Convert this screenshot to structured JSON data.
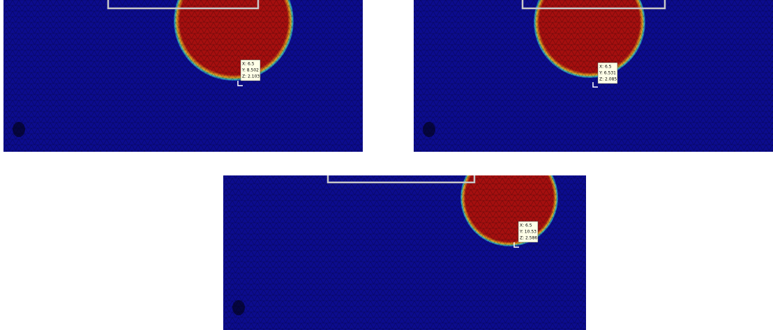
{
  "panels": [
    {
      "datatip": [
        "X: 6.5",
        "Y: 8.502",
        "Z: 2.103"
      ]
    },
    {
      "datatip": [
        "X: 6.5",
        "Y: 6.531",
        "Z: 2.085"
      ]
    },
    {
      "datatip": [
        "X: 6.5",
        "Y: 10.53",
        "Z: 2.586"
      ]
    }
  ]
}
